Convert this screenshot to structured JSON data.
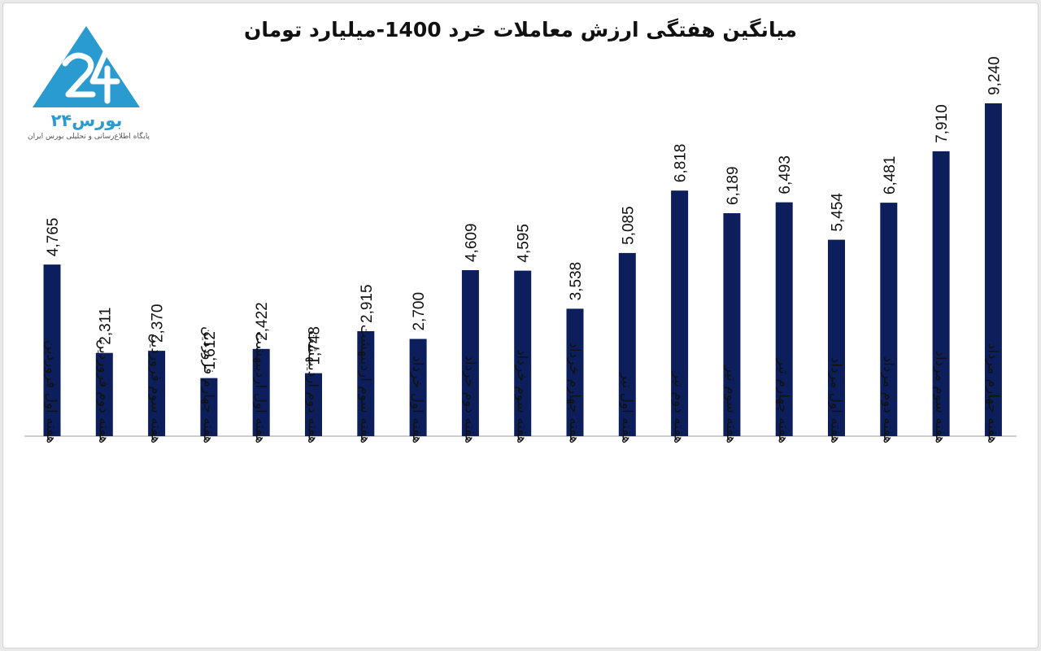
{
  "chart_data": {
    "type": "bar",
    "title": "میانگین هفتگی ارزش معاملات خرد 1400-میلیارد تومان",
    "categories": [
      "هفته اول فروردین",
      "هفته دوم فروردین",
      "هفته سوم فروردین",
      "هفته چهارم فروردین",
      "هفته اول اردیبهشت",
      "هفته دوم اردیبهشت",
      "هفته سوم اردیبهشت",
      "هفته اول خرداد",
      "هفته دوم خرداد",
      "هفته سوم خرداد",
      "هفته چهارم خرداد",
      "هفته اول تیر",
      "هفته دوم تیر",
      "هفته سوم تیر",
      "هفته چهارم تیر",
      "هفته اول مرداد",
      "هفته دوم مرداد",
      "هفته سوم مرداد",
      "هفته چهارم مرداد"
    ],
    "values": [
      4765,
      2311,
      2370,
      1612,
      2422,
      1748,
      2915,
      2700,
      4609,
      4595,
      3538,
      5085,
      6818,
      6189,
      6493,
      5454,
      6481,
      7910,
      9240
    ],
    "value_labels": [
      "4,765",
      "2,311",
      "2,370",
      "1,612",
      "2,422",
      "1,748",
      "2,915",
      "2,700",
      "4,609",
      "4,595",
      "3,538",
      "5,085",
      "6,818",
      "6,189",
      "6,493",
      "5,454",
      "6,481",
      "7,910",
      "9,240"
    ],
    "xlabel": "",
    "ylabel": "",
    "ylim": [
      0,
      9240
    ],
    "grid": false,
    "legend": "none",
    "bar_color": "#0c1f5c"
  },
  "logo": {
    "brand": "بورس۲۴",
    "tagline": "پایگاه اطلاع‌رسانی و تحلیلی بورس ایران",
    "color": "#2a9bd0"
  }
}
